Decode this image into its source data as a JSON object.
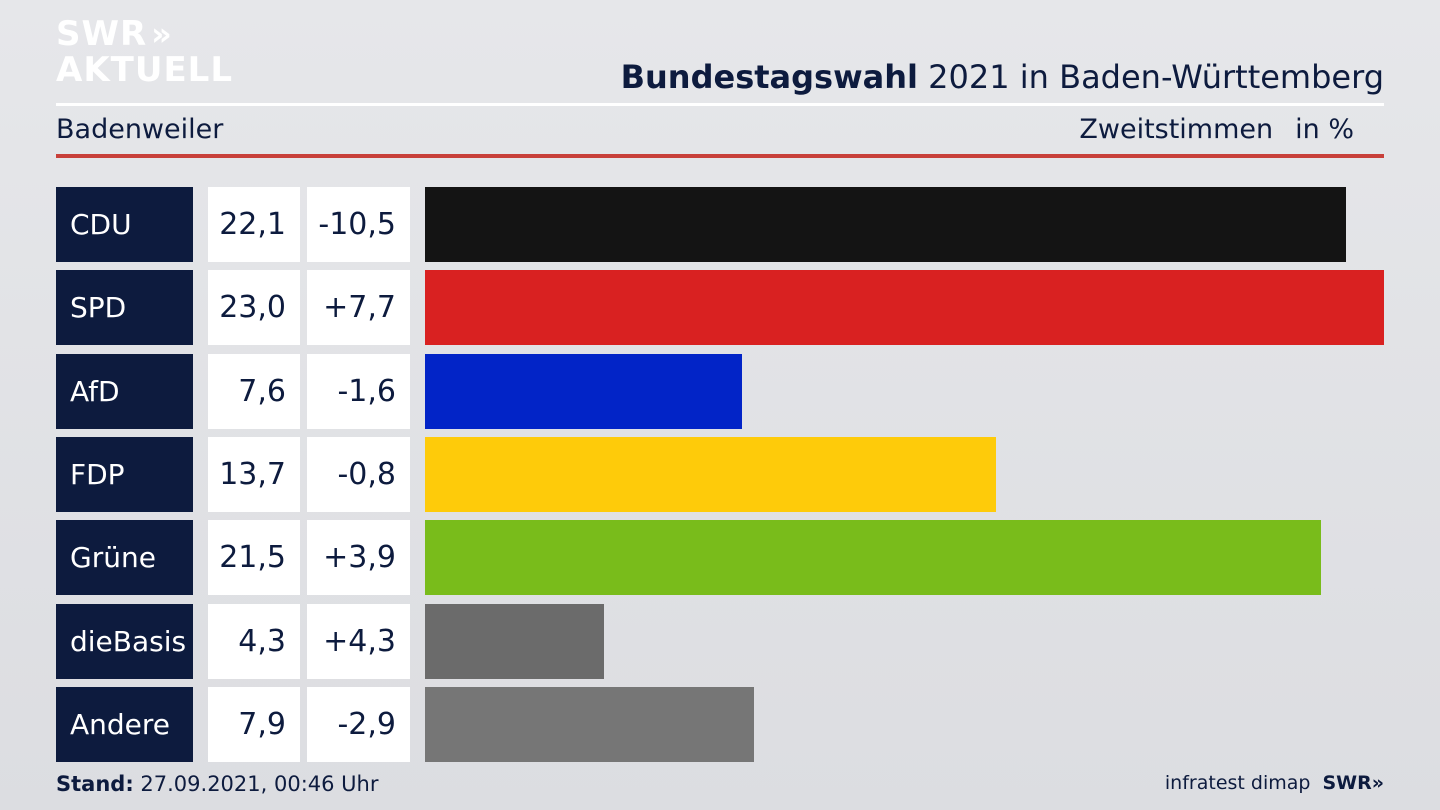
{
  "logo": {
    "line1": "SWR",
    "chevrons": "»",
    "line2": "AKTUELL"
  },
  "title": {
    "bold": "Bundestagswahl",
    "rest": " 2021 in Baden-Württemberg"
  },
  "subtitle": "Badenweiler",
  "vote_type": {
    "label": "Zweitstimmen",
    "unit": "in %"
  },
  "chart_data": {
    "type": "bar",
    "orientation": "horizontal",
    "title": "Bundestagswahl 2021 in Baden-Württemberg",
    "subtitle": "Badenweiler",
    "ylabel": "Zweitstimmen in %",
    "categories": [
      "CDU",
      "SPD",
      "AfD",
      "FDP",
      "Grüne",
      "dieBasis",
      "Andere"
    ],
    "values": [
      22.1,
      23.0,
      7.6,
      13.7,
      21.5,
      4.3,
      7.9
    ],
    "value_labels": [
      "22,1",
      "23,0",
      "7,6",
      "13,7",
      "21,5",
      "4,3",
      "7,9"
    ],
    "diff_labels": [
      "-10,5",
      "+7,7",
      "-1,6",
      "-0,8",
      "+3,9",
      "+4,3",
      "-2,9"
    ],
    "diffs": [
      -10.5,
      7.7,
      -1.6,
      -0.8,
      3.9,
      4.3,
      -2.9
    ],
    "colors": [
      "#141414",
      "#d92121",
      "#0224c7",
      "#fecb0a",
      "#79bc1b",
      "#6b6b6b",
      "#767676"
    ],
    "xlim": [
      0,
      23.0
    ],
    "grid": false
  },
  "footer": {
    "stand_label": "Stand:",
    "stand_value": " 27.09.2021, 00:46 Uhr",
    "source": "infratest dimap",
    "brand": "SWR»"
  }
}
